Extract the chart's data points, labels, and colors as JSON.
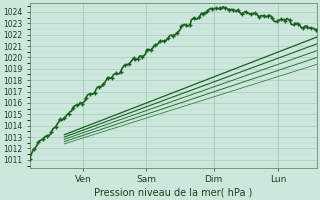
{
  "xlabel": "Pression niveau de la mer( hPa )",
  "day_labels": [
    "Ven",
    "Sam",
    "Dim",
    "Lun"
  ],
  "day_positions": [
    0.185,
    0.405,
    0.64,
    0.865
  ],
  "ylim_min": 1010.3,
  "ylim_max": 1024.8,
  "ytick_min": 1011,
  "ytick_max": 1024,
  "bg_color": "#cce8dc",
  "grid_major_color": "#aaccbb",
  "grid_minor_color": "#bbddcc",
  "dark_green": "#1a6020",
  "mid_green": "#2a7030",
  "light_green": "#3a8040",
  "n_points": 200
}
